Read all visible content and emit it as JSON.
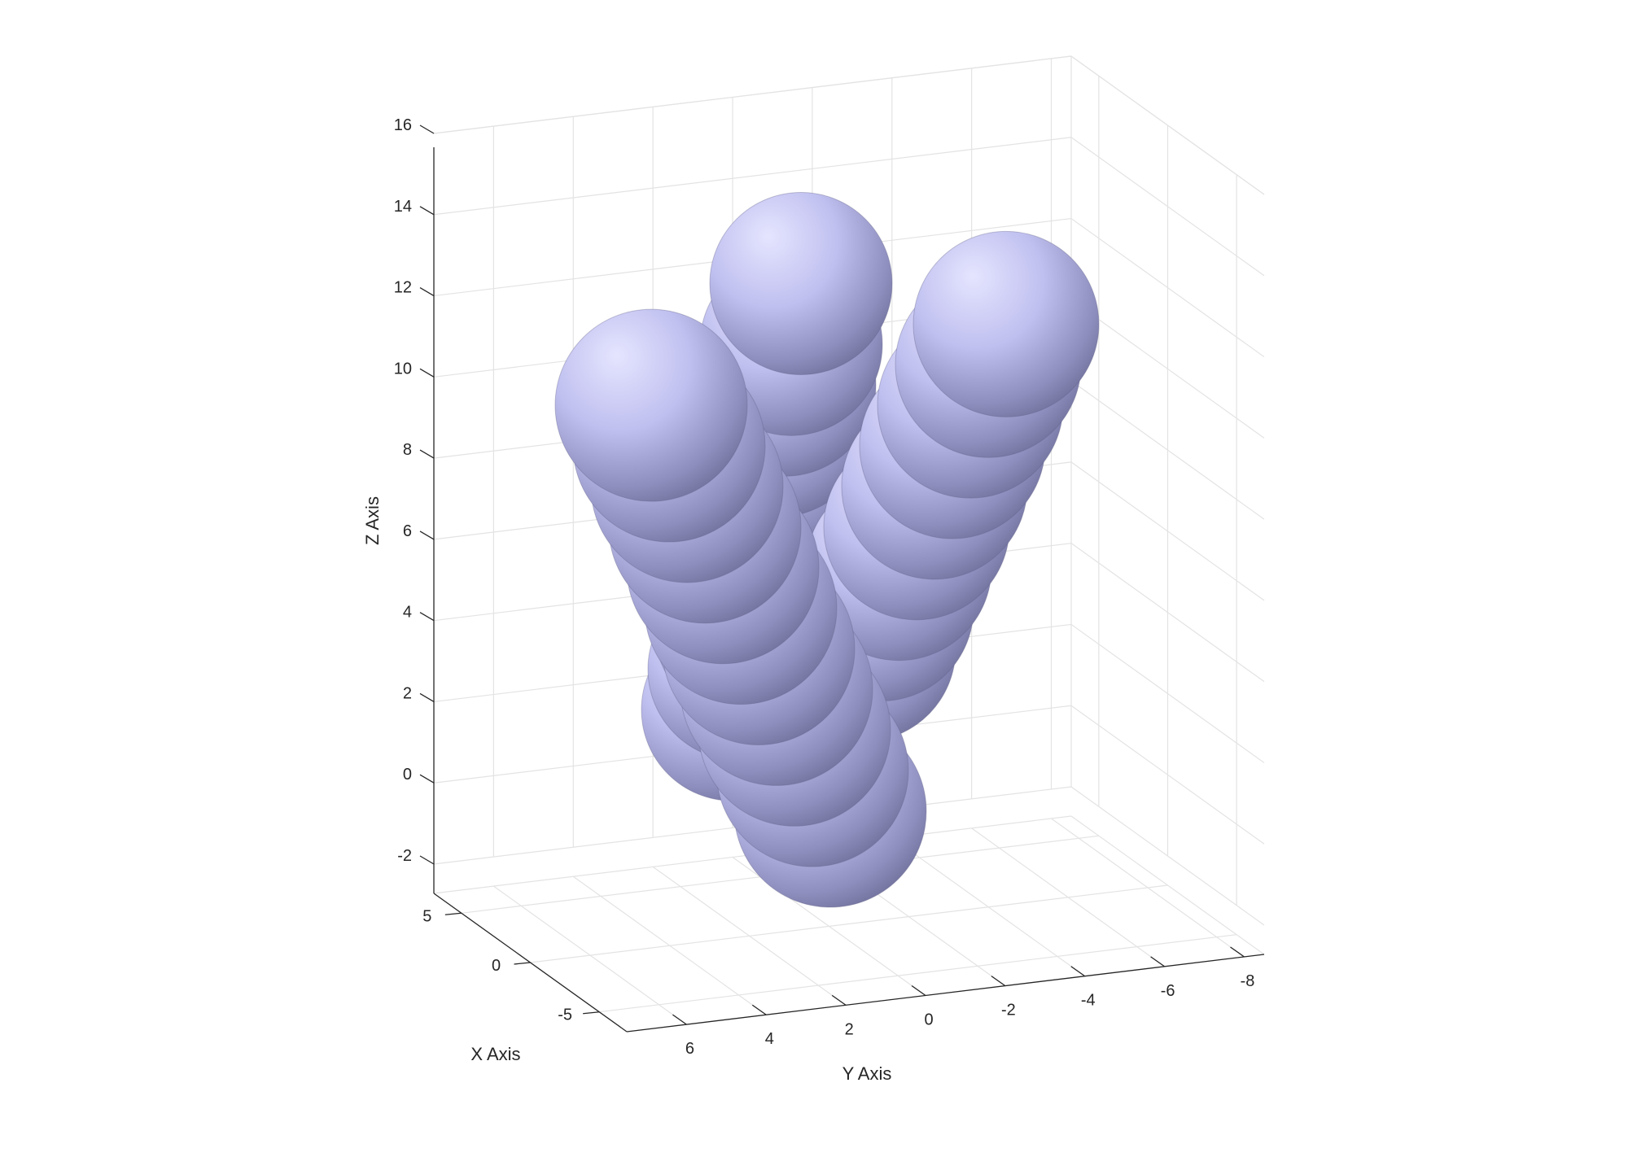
{
  "chart_data": {
    "type": "3d-surface",
    "title": "",
    "xlabel": "X Axis",
    "ylabel": "Y Axis",
    "zlabel": "Z Axis",
    "x_ticks": [
      "5",
      "0",
      "-5"
    ],
    "y_ticks": [
      "6",
      "4",
      "2",
      "0",
      "-2",
      "-4",
      "-6",
      "-8"
    ],
    "z_ticks": [
      "16",
      "14",
      "12",
      "10",
      "8",
      "6",
      "4",
      "2",
      "0",
      "-2"
    ],
    "xlim": [
      -7,
      7
    ],
    "ylim": [
      -8,
      7
    ],
    "zlim": [
      -2.5,
      16
    ],
    "grid": true,
    "face_color": "#c8c8ff",
    "surface": "chain of overlapping spheres",
    "chains": [
      {
        "centers_z": [
          -1.5,
          -0.5,
          0.5,
          1.5,
          2.5,
          3.5,
          4.5,
          5.5,
          6.5,
          7.5,
          8.5
        ]
      },
      {
        "centers_z": [
          1.0,
          2.0,
          3.0,
          4.0,
          5.0,
          6.0,
          7.0,
          8.0,
          9.0,
          10.0,
          11.5
        ]
      },
      {
        "centers_z": [
          2.5,
          3.5,
          4.5,
          5.5,
          6.5,
          7.5,
          8.5,
          9.5,
          10.5
        ]
      }
    ]
  }
}
